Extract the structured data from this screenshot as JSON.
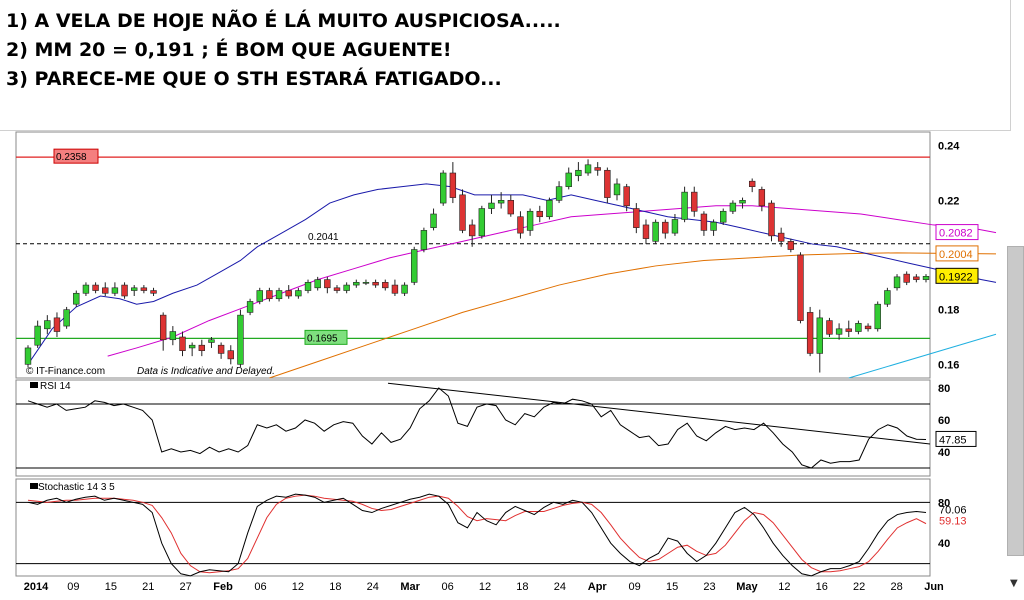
{
  "notes": [
    "1)  A VELA DE HOJE NÃO É LÁ MUITO AUSPICIOSA.....",
    "2)  MM 20 = 0,191 ; É BOM QUE AGUENTE!",
    "3)  PARECE-ME QUE O STH ESTARÁ FATIGADO..."
  ],
  "chart_data": {
    "type": "candlestick",
    "watermark": "© IT-Finance.com",
    "disclaimer": "Data is Indicative and Delayed.",
    "price_axis": {
      "ylim": [
        0.155,
        0.245
      ],
      "ticks": [
        0.24,
        0.22,
        0.18,
        0.16
      ]
    },
    "x_ticks": [
      "2014",
      "09",
      "15",
      "21",
      "27",
      "Feb",
      "06",
      "12",
      "18",
      "24",
      "Mar",
      "06",
      "12",
      "18",
      "24",
      "Apr",
      "09",
      "15",
      "23",
      "May",
      "12",
      "16",
      "22",
      "28",
      "Jun"
    ],
    "candles": [
      {
        "o": 0.16,
        "h": 0.167,
        "l": 0.159,
        "c": 0.166
      },
      {
        "o": 0.167,
        "h": 0.176,
        "l": 0.166,
        "c": 0.174
      },
      {
        "o": 0.173,
        "h": 0.178,
        "l": 0.171,
        "c": 0.176
      },
      {
        "o": 0.177,
        "h": 0.179,
        "l": 0.17,
        "c": 0.172
      },
      {
        "o": 0.174,
        "h": 0.181,
        "l": 0.173,
        "c": 0.18
      },
      {
        "o": 0.182,
        "h": 0.187,
        "l": 0.181,
        "c": 0.186
      },
      {
        "o": 0.186,
        "h": 0.19,
        "l": 0.185,
        "c": 0.189
      },
      {
        "o": 0.189,
        "h": 0.19,
        "l": 0.186,
        "c": 0.187
      },
      {
        "o": 0.188,
        "h": 0.19,
        "l": 0.185,
        "c": 0.186
      },
      {
        "o": 0.186,
        "h": 0.19,
        "l": 0.185,
        "c": 0.188
      },
      {
        "o": 0.189,
        "h": 0.19,
        "l": 0.184,
        "c": 0.185
      },
      {
        "o": 0.187,
        "h": 0.189,
        "l": 0.185,
        "c": 0.188
      },
      {
        "o": 0.188,
        "h": 0.189,
        "l": 0.186,
        "c": 0.187
      },
      {
        "o": 0.187,
        "h": 0.188,
        "l": 0.185,
        "c": 0.186
      },
      {
        "o": 0.178,
        "h": 0.179,
        "l": 0.165,
        "c": 0.169
      },
      {
        "o": 0.169,
        "h": 0.174,
        "l": 0.167,
        "c": 0.172
      },
      {
        "o": 0.17,
        "h": 0.172,
        "l": 0.163,
        "c": 0.165
      },
      {
        "o": 0.166,
        "h": 0.168,
        "l": 0.163,
        "c": 0.167
      },
      {
        "o": 0.167,
        "h": 0.169,
        "l": 0.163,
        "c": 0.165
      },
      {
        "o": 0.168,
        "h": 0.17,
        "l": 0.166,
        "c": 0.169
      },
      {
        "o": 0.167,
        "h": 0.168,
        "l": 0.162,
        "c": 0.164
      },
      {
        "o": 0.165,
        "h": 0.167,
        "l": 0.16,
        "c": 0.162
      },
      {
        "o": 0.16,
        "h": 0.18,
        "l": 0.159,
        "c": 0.178
      },
      {
        "o": 0.179,
        "h": 0.184,
        "l": 0.178,
        "c": 0.183
      },
      {
        "o": 0.183,
        "h": 0.188,
        "l": 0.182,
        "c": 0.187
      },
      {
        "o": 0.187,
        "h": 0.188,
        "l": 0.183,
        "c": 0.184
      },
      {
        "o": 0.184,
        "h": 0.188,
        "l": 0.183,
        "c": 0.187
      },
      {
        "o": 0.187,
        "h": 0.189,
        "l": 0.184,
        "c": 0.185
      },
      {
        "o": 0.185,
        "h": 0.188,
        "l": 0.184,
        "c": 0.187
      },
      {
        "o": 0.187,
        "h": 0.191,
        "l": 0.186,
        "c": 0.19
      },
      {
        "o": 0.188,
        "h": 0.192,
        "l": 0.187,
        "c": 0.191
      },
      {
        "o": 0.191,
        "h": 0.192,
        "l": 0.186,
        "c": 0.188
      },
      {
        "o": 0.188,
        "h": 0.189,
        "l": 0.186,
        "c": 0.187
      },
      {
        "o": 0.187,
        "h": 0.19,
        "l": 0.186,
        "c": 0.189
      },
      {
        "o": 0.189,
        "h": 0.191,
        "l": 0.188,
        "c": 0.19
      },
      {
        "o": 0.19,
        "h": 0.191,
        "l": 0.189,
        "c": 0.19
      },
      {
        "o": 0.19,
        "h": 0.191,
        "l": 0.188,
        "c": 0.189
      },
      {
        "o": 0.19,
        "h": 0.191,
        "l": 0.187,
        "c": 0.188
      },
      {
        "o": 0.189,
        "h": 0.191,
        "l": 0.185,
        "c": 0.186
      },
      {
        "o": 0.186,
        "h": 0.19,
        "l": 0.185,
        "c": 0.189
      },
      {
        "o": 0.19,
        "h": 0.203,
        "l": 0.189,
        "c": 0.202
      },
      {
        "o": 0.202,
        "h": 0.21,
        "l": 0.201,
        "c": 0.209
      },
      {
        "o": 0.21,
        "h": 0.217,
        "l": 0.209,
        "c": 0.215
      },
      {
        "o": 0.219,
        "h": 0.231,
        "l": 0.218,
        "c": 0.23
      },
      {
        "o": 0.23,
        "h": 0.234,
        "l": 0.219,
        "c": 0.221
      },
      {
        "o": 0.222,
        "h": 0.224,
        "l": 0.208,
        "c": 0.209
      },
      {
        "o": 0.211,
        "h": 0.213,
        "l": 0.203,
        "c": 0.207
      },
      {
        "o": 0.207,
        "h": 0.218,
        "l": 0.206,
        "c": 0.217
      },
      {
        "o": 0.217,
        "h": 0.222,
        "l": 0.215,
        "c": 0.219
      },
      {
        "o": 0.219,
        "h": 0.223,
        "l": 0.217,
        "c": 0.22
      },
      {
        "o": 0.22,
        "h": 0.222,
        "l": 0.214,
        "c": 0.215
      },
      {
        "o": 0.214,
        "h": 0.216,
        "l": 0.206,
        "c": 0.208
      },
      {
        "o": 0.209,
        "h": 0.217,
        "l": 0.207,
        "c": 0.216
      },
      {
        "o": 0.216,
        "h": 0.218,
        "l": 0.212,
        "c": 0.214
      },
      {
        "o": 0.214,
        "h": 0.221,
        "l": 0.213,
        "c": 0.22
      },
      {
        "o": 0.22,
        "h": 0.227,
        "l": 0.219,
        "c": 0.225
      },
      {
        "o": 0.225,
        "h": 0.232,
        "l": 0.224,
        "c": 0.23
      },
      {
        "o": 0.229,
        "h": 0.234,
        "l": 0.227,
        "c": 0.231
      },
      {
        "o": 0.23,
        "h": 0.235,
        "l": 0.229,
        "c": 0.233
      },
      {
        "o": 0.232,
        "h": 0.234,
        "l": 0.229,
        "c": 0.231
      },
      {
        "o": 0.231,
        "h": 0.232,
        "l": 0.219,
        "c": 0.221
      },
      {
        "o": 0.222,
        "h": 0.228,
        "l": 0.22,
        "c": 0.226
      },
      {
        "o": 0.225,
        "h": 0.226,
        "l": 0.216,
        "c": 0.218
      },
      {
        "o": 0.217,
        "h": 0.219,
        "l": 0.208,
        "c": 0.21
      },
      {
        "o": 0.211,
        "h": 0.213,
        "l": 0.204,
        "c": 0.206
      },
      {
        "o": 0.205,
        "h": 0.213,
        "l": 0.204,
        "c": 0.212
      },
      {
        "o": 0.212,
        "h": 0.213,
        "l": 0.206,
        "c": 0.208
      },
      {
        "o": 0.208,
        "h": 0.215,
        "l": 0.207,
        "c": 0.213
      },
      {
        "o": 0.213,
        "h": 0.225,
        "l": 0.212,
        "c": 0.223
      },
      {
        "o": 0.223,
        "h": 0.225,
        "l": 0.214,
        "c": 0.216
      },
      {
        "o": 0.215,
        "h": 0.216,
        "l": 0.207,
        "c": 0.209
      },
      {
        "o": 0.209,
        "h": 0.213,
        "l": 0.207,
        "c": 0.212
      },
      {
        "o": 0.212,
        "h": 0.217,
        "l": 0.211,
        "c": 0.216
      },
      {
        "o": 0.216,
        "h": 0.22,
        "l": 0.215,
        "c": 0.219
      },
      {
        "o": 0.219,
        "h": 0.221,
        "l": 0.217,
        "c": 0.22
      },
      {
        "o": 0.227,
        "h": 0.228,
        "l": 0.223,
        "c": 0.225
      },
      {
        "o": 0.224,
        "h": 0.225,
        "l": 0.216,
        "c": 0.218
      },
      {
        "o": 0.219,
        "h": 0.22,
        "l": 0.205,
        "c": 0.207
      },
      {
        "o": 0.208,
        "h": 0.21,
        "l": 0.203,
        "c": 0.205
      },
      {
        "o": 0.205,
        "h": 0.206,
        "l": 0.201,
        "c": 0.202
      },
      {
        "o": 0.2,
        "h": 0.201,
        "l": 0.175,
        "c": 0.176
      },
      {
        "o": 0.179,
        "h": 0.181,
        "l": 0.163,
        "c": 0.164
      },
      {
        "o": 0.164,
        "h": 0.18,
        "l": 0.157,
        "c": 0.177
      },
      {
        "o": 0.176,
        "h": 0.177,
        "l": 0.17,
        "c": 0.171
      },
      {
        "o": 0.171,
        "h": 0.175,
        "l": 0.169,
        "c": 0.173
      },
      {
        "o": 0.173,
        "h": 0.176,
        "l": 0.17,
        "c": 0.172
      },
      {
        "o": 0.172,
        "h": 0.176,
        "l": 0.171,
        "c": 0.175
      },
      {
        "o": 0.174,
        "h": 0.175,
        "l": 0.172,
        "c": 0.173
      },
      {
        "o": 0.173,
        "h": 0.183,
        "l": 0.172,
        "c": 0.182
      },
      {
        "o": 0.182,
        "h": 0.188,
        "l": 0.181,
        "c": 0.187
      },
      {
        "o": 0.188,
        "h": 0.193,
        "l": 0.187,
        "c": 0.192
      },
      {
        "o": 0.193,
        "h": 0.194,
        "l": 0.189,
        "c": 0.19
      },
      {
        "o": 0.192,
        "h": 0.193,
        "l": 0.19,
        "c": 0.191
      },
      {
        "o": 0.191,
        "h": 0.193,
        "l": 0.19,
        "c": 0.1922
      }
    ],
    "ma_blue": [
      [
        0,
        0.16
      ],
      [
        10,
        0.173
      ],
      [
        20,
        0.181
      ],
      [
        30,
        0.185
      ],
      [
        38,
        0.184
      ],
      [
        45,
        0.182
      ],
      [
        52,
        0.183
      ],
      [
        60,
        0.186
      ],
      [
        70,
        0.189
      ],
      [
        80,
        0.194
      ],
      [
        88,
        0.198
      ],
      [
        95,
        0.203
      ],
      [
        105,
        0.208
      ],
      [
        115,
        0.213
      ],
      [
        125,
        0.219
      ],
      [
        135,
        0.222
      ],
      [
        145,
        0.224
      ],
      [
        155,
        0.225
      ],
      [
        165,
        0.226
      ],
      [
        175,
        0.225
      ],
      [
        185,
        0.222
      ],
      [
        195,
        0.222
      ],
      [
        205,
        0.222
      ],
      [
        215,
        0.22
      ],
      [
        225,
        0.222
      ],
      [
        235,
        0.22
      ],
      [
        245,
        0.218
      ],
      [
        255,
        0.216
      ],
      [
        265,
        0.214
      ],
      [
        275,
        0.213
      ],
      [
        285,
        0.212
      ],
      [
        295,
        0.21
      ],
      [
        305,
        0.208
      ],
      [
        315,
        0.206
      ],
      [
        325,
        0.204
      ],
      [
        335,
        0.203
      ],
      [
        345,
        0.201
      ],
      [
        355,
        0.199
      ],
      [
        365,
        0.197
      ],
      [
        375,
        0.195
      ],
      [
        385,
        0.193
      ],
      [
        395,
        0.191
      ],
      [
        401,
        0.19
      ]
    ],
    "ma_magenta": [
      [
        33,
        0.163
      ],
      [
        45,
        0.166
      ],
      [
        60,
        0.17
      ],
      [
        75,
        0.176
      ],
      [
        90,
        0.181
      ],
      [
        105,
        0.186
      ],
      [
        120,
        0.191
      ],
      [
        135,
        0.195
      ],
      [
        150,
        0.199
      ],
      [
        165,
        0.202
      ],
      [
        180,
        0.205
      ],
      [
        195,
        0.208
      ],
      [
        210,
        0.211
      ],
      [
        225,
        0.214
      ],
      [
        240,
        0.215
      ],
      [
        255,
        0.216
      ],
      [
        270,
        0.217
      ],
      [
        285,
        0.218
      ],
      [
        300,
        0.218
      ],
      [
        315,
        0.217
      ],
      [
        330,
        0.216
      ],
      [
        345,
        0.215
      ],
      [
        360,
        0.213
      ],
      [
        375,
        0.211
      ],
      [
        390,
        0.21
      ],
      [
        401,
        0.2082
      ]
    ],
    "ma_orange": [
      [
        100,
        0.155
      ],
      [
        120,
        0.161
      ],
      [
        140,
        0.167
      ],
      [
        160,
        0.173
      ],
      [
        180,
        0.179
      ],
      [
        200,
        0.184
      ],
      [
        220,
        0.189
      ],
      [
        240,
        0.193
      ],
      [
        260,
        0.196
      ],
      [
        280,
        0.198
      ],
      [
        300,
        0.199
      ],
      [
        320,
        0.2
      ],
      [
        340,
        0.2005
      ],
      [
        360,
        0.2008
      ],
      [
        380,
        0.2006
      ],
      [
        401,
        0.2004
      ]
    ],
    "trendline_cyan": [
      [
        340,
        0.155
      ],
      [
        401,
        0.171
      ]
    ],
    "levels": [
      {
        "label": "0.2358",
        "value": 0.2358,
        "color": "#e02020"
      },
      {
        "label": "0.2041",
        "value": 0.2041,
        "color": "#000000"
      },
      {
        "label": "0.1695",
        "value": 0.1695,
        "color": "#22aa22"
      }
    ],
    "right_labels": [
      {
        "text": "0.2082",
        "value": 0.2082,
        "color": "#cc00cc"
      },
      {
        "text": "0.2004",
        "value": 0.2004,
        "color": "#e07000"
      },
      {
        "text": "0.1922",
        "value": 0.1922,
        "color": "#000000"
      }
    ],
    "rsi": {
      "name": "RSI 14",
      "ticks": [
        80,
        60,
        40
      ],
      "levels": [
        70,
        30
      ],
      "last_label": "47.85",
      "values": [
        72,
        70,
        68,
        70,
        66,
        67,
        68,
        72,
        71,
        69,
        70,
        68,
        66,
        60,
        40,
        42,
        40,
        41,
        39,
        43,
        40,
        42,
        40,
        44,
        57,
        55,
        57,
        53,
        55,
        60,
        58,
        53,
        57,
        59,
        58,
        50,
        45,
        52,
        46,
        48,
        55,
        67,
        72,
        80,
        75,
        58,
        56,
        68,
        70,
        69,
        60,
        57,
        64,
        62,
        68,
        71,
        70,
        73,
        72,
        70,
        62,
        66,
        57,
        53,
        49,
        50,
        44,
        45,
        54,
        58,
        50,
        47,
        52,
        56,
        54,
        55,
        54,
        58,
        52,
        45,
        40,
        32,
        30,
        35,
        33,
        34,
        34,
        35,
        48,
        54,
        57,
        55,
        50,
        48,
        47.85
      ]
    },
    "stoch": {
      "name": "Stochastic 14 3 5",
      "ticks": [
        80,
        40
      ],
      "levels": [
        80,
        20
      ],
      "k_label": "70.06",
      "d_label": "59.13",
      "k": [
        80,
        78,
        82,
        84,
        80,
        83,
        85,
        86,
        82,
        84,
        82,
        80,
        78,
        70,
        40,
        20,
        10,
        8,
        12,
        14,
        13,
        12,
        20,
        50,
        76,
        82,
        86,
        85,
        88,
        87,
        85,
        80,
        82,
        84,
        78,
        72,
        70,
        74,
        77,
        80,
        83,
        85,
        88,
        86,
        78,
        60,
        55,
        70,
        62,
        58,
        70,
        76,
        72,
        68,
        75,
        80,
        78,
        82,
        80,
        70,
        55,
        40,
        30,
        22,
        18,
        25,
        30,
        45,
        42,
        30,
        22,
        28,
        40,
        55,
        70,
        75,
        68,
        55,
        40,
        28,
        18,
        10,
        8,
        12,
        15,
        15,
        18,
        22,
        35,
        50,
        62,
        68,
        70,
        71,
        70.06
      ],
      "d": [
        82,
        81,
        80,
        81,
        82,
        82,
        83,
        84,
        84,
        84,
        83,
        82,
        80,
        77,
        65,
        50,
        30,
        18,
        12,
        11,
        12,
        13,
        15,
        25,
        45,
        65,
        78,
        84,
        86,
        87,
        86,
        84,
        83,
        82,
        81,
        78,
        74,
        72,
        73,
        76,
        79,
        82,
        85,
        86,
        84,
        76,
        66,
        62,
        64,
        63,
        62,
        67,
        71,
        71,
        71,
        74,
        77,
        79,
        80,
        78,
        70,
        58,
        45,
        35,
        26,
        22,
        24,
        30,
        36,
        38,
        32,
        28,
        30,
        38,
        50,
        62,
        70,
        68,
        60,
        48,
        36,
        24,
        16,
        12,
        12,
        13,
        15,
        17,
        22,
        32,
        44,
        55,
        60,
        64,
        59.13
      ]
    }
  }
}
